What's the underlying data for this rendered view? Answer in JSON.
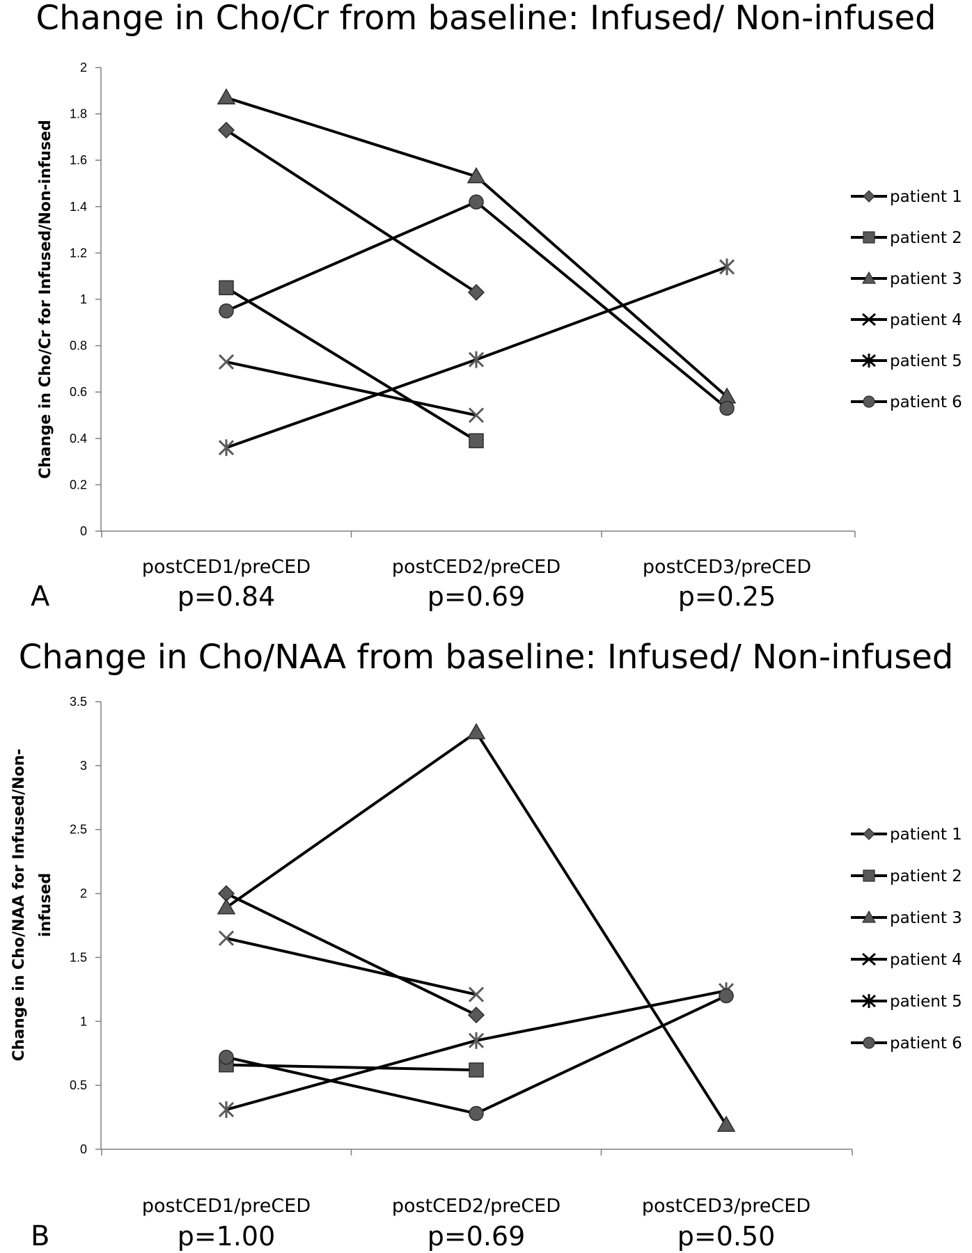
{
  "chart_data": [
    {
      "panel_label": "A",
      "type": "line",
      "title": "Change in Cho/Cr  from baseline: Infused/ Non-infused",
      "ylabel": "Change in Cho/Cr for Infused/Non-infused",
      "xlabel": "",
      "categories": [
        "postCED1/preCED",
        "postCED2/preCED",
        "postCED3/preCED"
      ],
      "p_values": [
        "p=0.84",
        "p=0.69",
        "p=0.25"
      ],
      "ylim": [
        0,
        2
      ],
      "yticks": [
        0,
        0.2,
        0.4,
        0.6,
        0.8,
        1,
        1.2,
        1.4,
        1.6,
        1.8,
        2
      ],
      "ytick_labels": [
        "0",
        "0.2",
        "0.4",
        "0.6",
        "0.8",
        "1",
        "1.2",
        "1.4",
        "1.6",
        "1.8",
        "2"
      ],
      "grid": false,
      "legend_position": "right",
      "series": [
        {
          "name": "patient 1",
          "marker": "diamond",
          "values": [
            1.73,
            1.03,
            null
          ]
        },
        {
          "name": "patient 2",
          "marker": "square",
          "values": [
            1.05,
            0.39,
            null
          ]
        },
        {
          "name": "patient 3",
          "marker": "triangle",
          "values": [
            1.87,
            1.53,
            0.58
          ]
        },
        {
          "name": "patient 4",
          "marker": "x",
          "values": [
            0.73,
            0.5,
            null
          ]
        },
        {
          "name": "patient 5",
          "marker": "asterisk",
          "values": [
            0.36,
            0.74,
            1.14
          ]
        },
        {
          "name": "patient 6",
          "marker": "circle",
          "values": [
            0.95,
            1.42,
            0.53
          ]
        }
      ]
    },
    {
      "panel_label": "B",
      "type": "line",
      "title": "Change in Cho/NAA  from baseline: Infused/ Non-infused",
      "ylabel": "Change in Cho/NAA for Infused/Non-infused",
      "ylabel_lines": [
        "Change in Cho/NAA for Infused/Non-",
        "infused"
      ],
      "xlabel": "",
      "categories": [
        "postCED1/preCED",
        "postCED2/preCED",
        "postCED3/preCED"
      ],
      "p_values": [
        "p=1.00",
        "p=0.69",
        "p=0.50"
      ],
      "ylim": [
        0,
        3.5
      ],
      "yticks": [
        0,
        0.5,
        1,
        1.5,
        2,
        2.5,
        3,
        3.5
      ],
      "ytick_labels": [
        "0",
        "0.5",
        "1",
        "1.5",
        "2",
        "2.5",
        "3",
        "3.5"
      ],
      "grid": false,
      "legend_position": "right",
      "series": [
        {
          "name": "patient 1",
          "marker": "diamond",
          "values": [
            2.0,
            1.05,
            null
          ]
        },
        {
          "name": "patient 2",
          "marker": "square",
          "values": [
            0.66,
            0.62,
            null
          ]
        },
        {
          "name": "patient 3",
          "marker": "triangle",
          "values": [
            1.89,
            3.26,
            0.19
          ]
        },
        {
          "name": "patient 4",
          "marker": "x",
          "values": [
            1.65,
            1.21,
            null
          ]
        },
        {
          "name": "patient 5",
          "marker": "asterisk",
          "values": [
            0.31,
            0.85,
            1.24
          ]
        },
        {
          "name": "patient 6",
          "marker": "circle",
          "values": [
            0.72,
            0.28,
            1.2
          ]
        }
      ]
    }
  ],
  "colors": {
    "line": "#000000",
    "marker_fill": "#595959",
    "marker_stroke": "#2b2b2b",
    "axis": "#7f7f7f"
  }
}
